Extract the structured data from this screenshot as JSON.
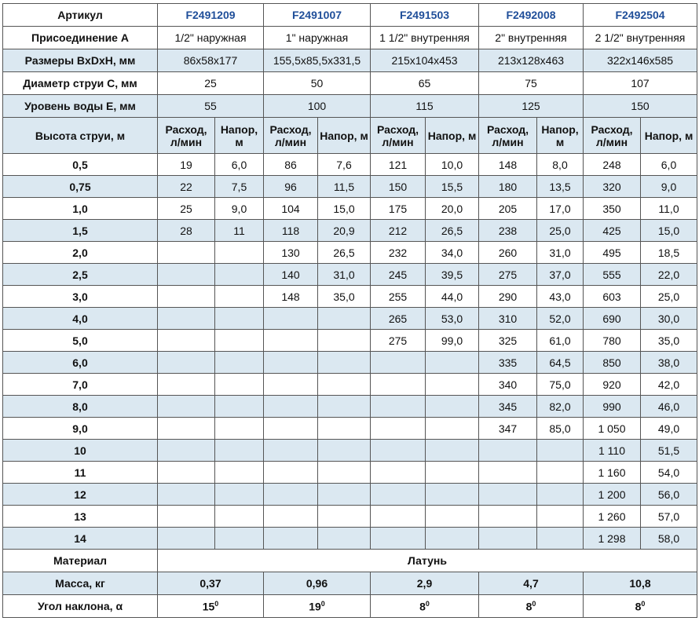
{
  "table": {
    "header": [
      "Артикул",
      "F2491209",
      "F2491007",
      "F2491503",
      "F2492008",
      "F2492504"
    ],
    "info_rows": [
      [
        "Присоединение А",
        "1/2\" наружная",
        "1\" наружная",
        "1 1/2\" внутренняя",
        "2\" внутренняя",
        "2 1/2\" внутренняя"
      ],
      [
        "Размеры BxDxH, мм",
        "86x58x177",
        "155,5x85,5x331,5",
        "215x104x453",
        "213x128x463",
        "322x146x585"
      ],
      [
        "Диаметр струи С, мм",
        "25",
        "50",
        "65",
        "75",
        "107"
      ],
      [
        "Уровень воды Е, мм",
        "55",
        "100",
        "115",
        "125",
        "150"
      ]
    ],
    "subheader": {
      "label": "Высота струи, м",
      "flow": "Расход, л/мин",
      "head": "Напор, м"
    },
    "rows": [
      {
        "height": "0,5",
        "values": [
          "19",
          "6,0",
          "86",
          "7,6",
          "121",
          "10,0",
          "148",
          "8,0",
          "248",
          "6,0"
        ]
      },
      {
        "height": "0,75",
        "values": [
          "22",
          "7,5",
          "96",
          "11,5",
          "150",
          "15,5",
          "180",
          "13,5",
          "320",
          "9,0"
        ]
      },
      {
        "height": "1,0",
        "values": [
          "25",
          "9,0",
          "104",
          "15,0",
          "175",
          "20,0",
          "205",
          "17,0",
          "350",
          "11,0"
        ]
      },
      {
        "height": "1,5",
        "values": [
          "28",
          "11",
          "118",
          "20,9",
          "212",
          "26,5",
          "238",
          "25,0",
          "425",
          "15,0"
        ]
      },
      {
        "height": "2,0",
        "values": [
          null,
          null,
          "130",
          "26,5",
          "232",
          "34,0",
          "260",
          "31,0",
          "495",
          "18,5"
        ]
      },
      {
        "height": "2,5",
        "values": [
          null,
          null,
          "140",
          "31,0",
          "245",
          "39,5",
          "275",
          "37,0",
          "555",
          "22,0"
        ]
      },
      {
        "height": "3,0",
        "values": [
          null,
          null,
          "148",
          "35,0",
          "255",
          "44,0",
          "290",
          "43,0",
          "603",
          "25,0"
        ]
      },
      {
        "height": "4,0",
        "values": [
          null,
          null,
          null,
          null,
          "265",
          "53,0",
          "310",
          "52,0",
          "690",
          "30,0"
        ]
      },
      {
        "height": "5,0",
        "values": [
          null,
          null,
          null,
          null,
          "275",
          "99,0",
          "325",
          "61,0",
          "780",
          "35,0"
        ]
      },
      {
        "height": "6,0",
        "values": [
          null,
          null,
          null,
          null,
          null,
          null,
          "335",
          "64,5",
          "850",
          "38,0"
        ]
      },
      {
        "height": "7,0",
        "values": [
          null,
          null,
          null,
          null,
          null,
          null,
          "340",
          "75,0",
          "920",
          "42,0"
        ]
      },
      {
        "height": "8,0",
        "values": [
          null,
          null,
          null,
          null,
          null,
          null,
          "345",
          "82,0",
          "990",
          "46,0"
        ]
      },
      {
        "height": "9,0",
        "values": [
          null,
          null,
          null,
          null,
          null,
          null,
          "347",
          "85,0",
          "1 050",
          "49,0"
        ]
      },
      {
        "height": "10",
        "values": [
          null,
          null,
          null,
          null,
          null,
          null,
          null,
          null,
          "1 110",
          "51,5"
        ]
      },
      {
        "height": "11",
        "values": [
          null,
          null,
          null,
          null,
          null,
          null,
          null,
          null,
          "1 160",
          "54,0"
        ]
      },
      {
        "height": "12",
        "values": [
          null,
          null,
          null,
          null,
          null,
          null,
          null,
          null,
          "1 200",
          "56,0"
        ]
      },
      {
        "height": "13",
        "values": [
          null,
          null,
          null,
          null,
          null,
          null,
          null,
          null,
          "1 260",
          "57,0"
        ]
      },
      {
        "height": "14",
        "values": [
          null,
          null,
          null,
          null,
          null,
          null,
          null,
          null,
          "1 298",
          "58,0"
        ]
      }
    ],
    "material": {
      "label": "Материал",
      "value": "Латунь"
    },
    "mass": [
      "Масса, кг",
      "0,37",
      "0,96",
      "2,9",
      "4,7",
      "10,8"
    ],
    "angle": {
      "label": "Угол наклона, α",
      "values": [
        {
          "number": "15",
          "degree": "0"
        },
        {
          "number": "19",
          "degree": "0"
        },
        {
          "number": "8",
          "degree": "0"
        },
        {
          "number": "8",
          "degree": "0"
        },
        {
          "number": "8",
          "degree": "0"
        }
      ]
    }
  }
}
